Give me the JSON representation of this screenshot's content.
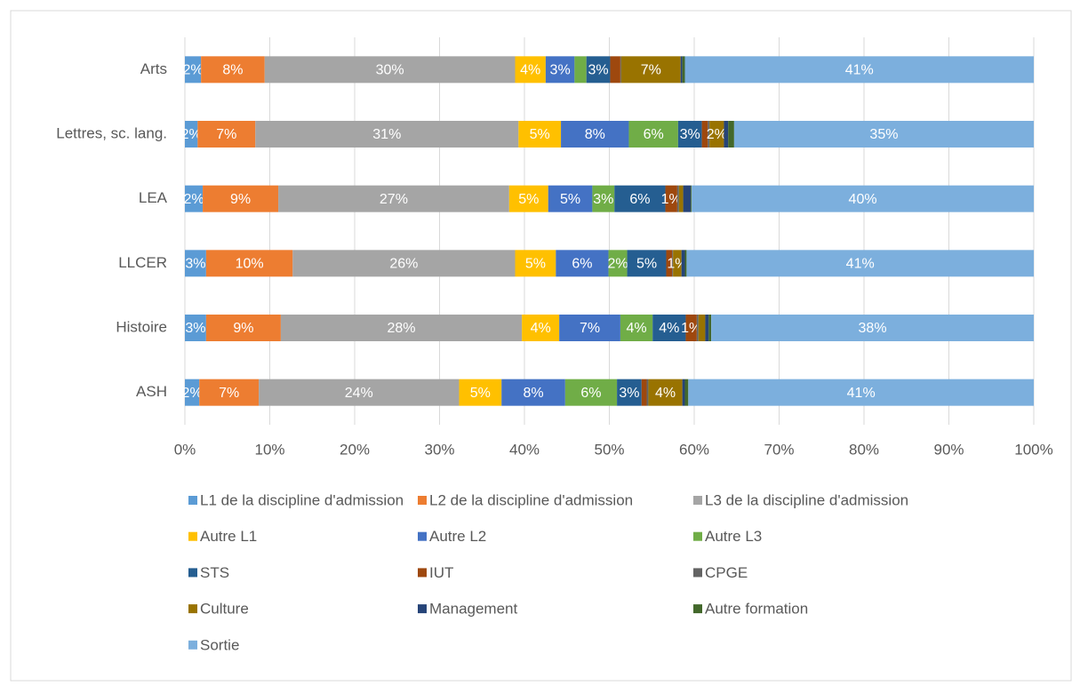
{
  "chart_data": {
    "type": "stacked_bar_horizontal",
    "categories": [
      "Arts",
      "Lettres, sc. lang.",
      "LEA",
      "LLCER",
      "Histoire",
      "ASH"
    ],
    "series": [
      {
        "name": "L1 de la discipline d'admission",
        "color": "#5b9bd5",
        "values": [
          1.9,
          1.5,
          2.1,
          2.5,
          2.5,
          1.7
        ],
        "value_labels": [
          "2%",
          "2%",
          "2%",
          "3%",
          "3%",
          "2%"
        ]
      },
      {
        "name": "L2 de la discipline d'admission",
        "color": "#ed7d31",
        "values": [
          7.5,
          6.8,
          8.9,
          10.2,
          8.8,
          7.0
        ],
        "value_labels": [
          "8%",
          "7%",
          "9%",
          "10%",
          "9%",
          "7%"
        ]
      },
      {
        "name": "L3 de la discipline d'admission",
        "color": "#a5a5a5",
        "values": [
          29.5,
          31.0,
          27.2,
          26.2,
          28.4,
          23.6
        ],
        "value_labels": [
          "30%",
          "31%",
          "27%",
          "26%",
          "28%",
          "24%"
        ]
      },
      {
        "name": "Autre L1",
        "color": "#ffc000",
        "values": [
          3.6,
          5.0,
          4.6,
          4.8,
          4.4,
          5.0
        ],
        "value_labels": [
          "4%",
          "5%",
          "5%",
          "5%",
          "4%",
          "5%"
        ]
      },
      {
        "name": "Autre L2",
        "color": "#4472c4",
        "values": [
          3.4,
          8.0,
          5.2,
          6.2,
          7.2,
          7.5
        ],
        "value_labels": [
          "3%",
          "8%",
          "5%",
          "6%",
          "7%",
          "8%"
        ]
      },
      {
        "name": "Autre L3",
        "color": "#70ad47",
        "values": [
          1.4,
          5.8,
          2.6,
          2.2,
          3.8,
          6.1
        ],
        "value_labels": [
          null,
          "6%",
          "3%",
          "2%",
          "4%",
          "6%"
        ]
      },
      {
        "name": "STS",
        "color": "#255e91",
        "values": [
          2.8,
          2.8,
          6.0,
          4.6,
          3.9,
          2.9
        ],
        "value_labels": [
          "3%",
          "3%",
          "6%",
          "5%",
          "4%",
          "3%"
        ]
      },
      {
        "name": "IUT",
        "color": "#9e480e",
        "values": [
          1.2,
          0.7,
          1.4,
          0.7,
          1.3,
          0.6
        ],
        "value_labels": [
          null,
          null,
          "1%",
          null,
          "1%",
          null
        ]
      },
      {
        "name": "CPGE",
        "color": "#636363",
        "values": [
          0.1,
          0.2,
          0.2,
          0.1,
          0.2,
          0.2
        ],
        "value_labels": [
          null,
          null,
          null,
          null,
          null,
          null
        ]
      },
      {
        "name": "Culture",
        "color": "#997300",
        "values": [
          7.0,
          1.7,
          0.5,
          1.0,
          0.8,
          4.0
        ],
        "value_labels": [
          "7%",
          "2%",
          null,
          "1%",
          null,
          "4%"
        ]
      },
      {
        "name": "Management",
        "color": "#264478",
        "values": [
          0.2,
          0.5,
          0.9,
          0.4,
          0.4,
          0.3
        ],
        "value_labels": [
          null,
          null,
          null,
          null,
          null,
          null
        ]
      },
      {
        "name": "Autre formation",
        "color": "#43682b",
        "values": [
          0.3,
          0.7,
          0.1,
          0.2,
          0.3,
          0.4
        ],
        "value_labels": [
          null,
          null,
          null,
          null,
          null,
          null
        ]
      },
      {
        "name": "Sortie",
        "color": "#7cafdd",
        "values": [
          41.1,
          35.3,
          40.3,
          40.9,
          38.0,
          40.7
        ],
        "value_labels": [
          "41%",
          "35%",
          "40%",
          "41%",
          "38%",
          "41%"
        ]
      }
    ],
    "xlim": [
      0,
      100
    ],
    "xticks": [
      {
        "value": 0,
        "label": "0%"
      },
      {
        "value": 10,
        "label": "10%"
      },
      {
        "value": 20,
        "label": "20%"
      },
      {
        "value": 30,
        "label": "30%"
      },
      {
        "value": 40,
        "label": "40%"
      },
      {
        "value": 50,
        "label": "50%"
      },
      {
        "value": 60,
        "label": "60%"
      },
      {
        "value": 70,
        "label": "70%"
      },
      {
        "value": 80,
        "label": "80%"
      },
      {
        "value": 90,
        "label": "90%"
      },
      {
        "value": 100,
        "label": "100%"
      }
    ],
    "grid": true,
    "legend": "bottom"
  }
}
